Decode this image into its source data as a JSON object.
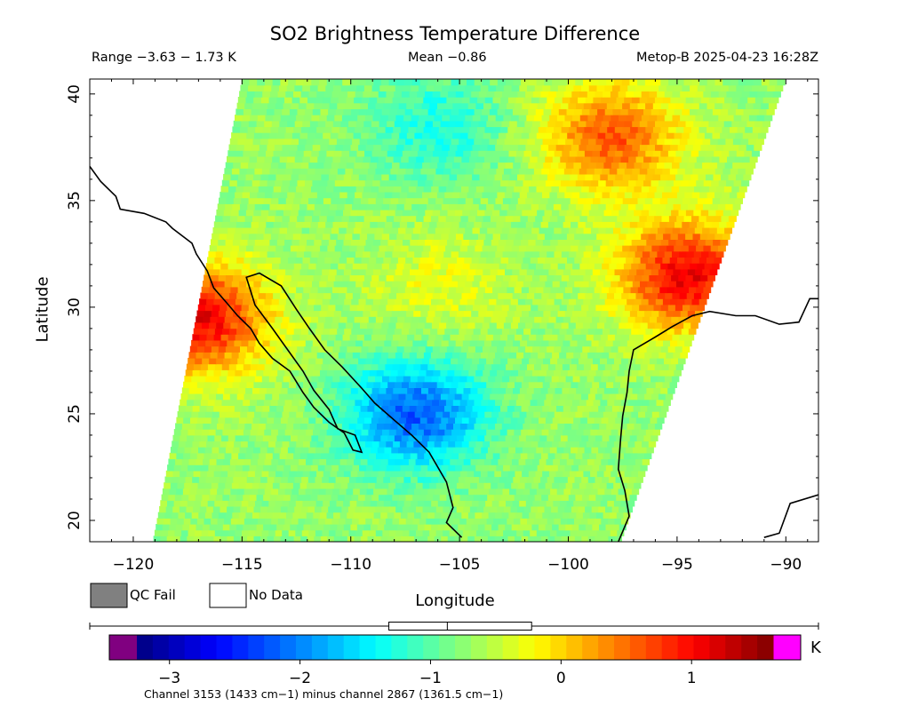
{
  "chart_data": {
    "type": "heatmap",
    "title": "SO2 Brightness Temperature Difference",
    "subtitle_range": "Range −3.63 − 1.73 K",
    "subtitle_mean": "Mean −0.86",
    "subtitle_satellite": "Metop-B 2025-04-23 16:28Z",
    "xlabel": "Longitude",
    "ylabel": "Latitude",
    "xlim": [
      -122,
      -88.5
    ],
    "ylim": [
      19,
      40.7
    ],
    "x_ticks": [
      -120,
      -115,
      -110,
      -105,
      -100,
      -95,
      -90
    ],
    "x_tick_labels": [
      "−120",
      "−115",
      "−110",
      "−105",
      "−100",
      "−95",
      "−90"
    ],
    "y_ticks": [
      20,
      25,
      30,
      35,
      40
    ],
    "y_tick_labels": [
      "20",
      "25",
      "30",
      "35",
      "40"
    ],
    "legend": [
      {
        "label": "QC Fail",
        "color": "#808080"
      },
      {
        "label": "No Data",
        "color": "#ffffff"
      }
    ],
    "colorbar": {
      "min": -3.25,
      "max": 1.625,
      "ticks": [
        -3,
        -2,
        -1,
        0,
        1
      ],
      "tick_labels": [
        "−3",
        "−2",
        "−1",
        "0",
        "1"
      ],
      "unit": "K",
      "under_color": "#800080",
      "over_color": "#ff00ff",
      "boxplot": {
        "min": -3.63,
        "q1": -1.43,
        "median": -1.0,
        "q3": -0.38,
        "max": 1.73
      },
      "note": "Channel 3153 (1433 cm−1) minus channel 2867 (1361.5 cm−1)"
    },
    "swath_lonlat": [
      [
        -119.1,
        19.0
      ],
      [
        -115.0,
        40.7
      ],
      [
        -90.0,
        40.7
      ],
      [
        -97.6,
        19.0
      ]
    ],
    "field_regions": [
      {
        "name": "background",
        "value": -0.7
      },
      {
        "name": "baja-hotspot",
        "lon": -117.0,
        "lat": 29.5,
        "value": 1.1
      },
      {
        "name": "gulf-hotspot",
        "lon": -94.5,
        "lat": 31.5,
        "value": 1.1
      },
      {
        "name": "northeast-warm",
        "lon": -98.0,
        "lat": 38.0,
        "value": 0.6
      },
      {
        "name": "central-yellow",
        "lon": -106.0,
        "lat": 31.0,
        "value": -0.3
      },
      {
        "name": "mexico-low",
        "lon": -107.0,
        "lat": 25.0,
        "value": -2.2
      },
      {
        "name": "north-cool",
        "lon": -106.0,
        "lat": 38.5,
        "value": -1.3
      }
    ]
  }
}
